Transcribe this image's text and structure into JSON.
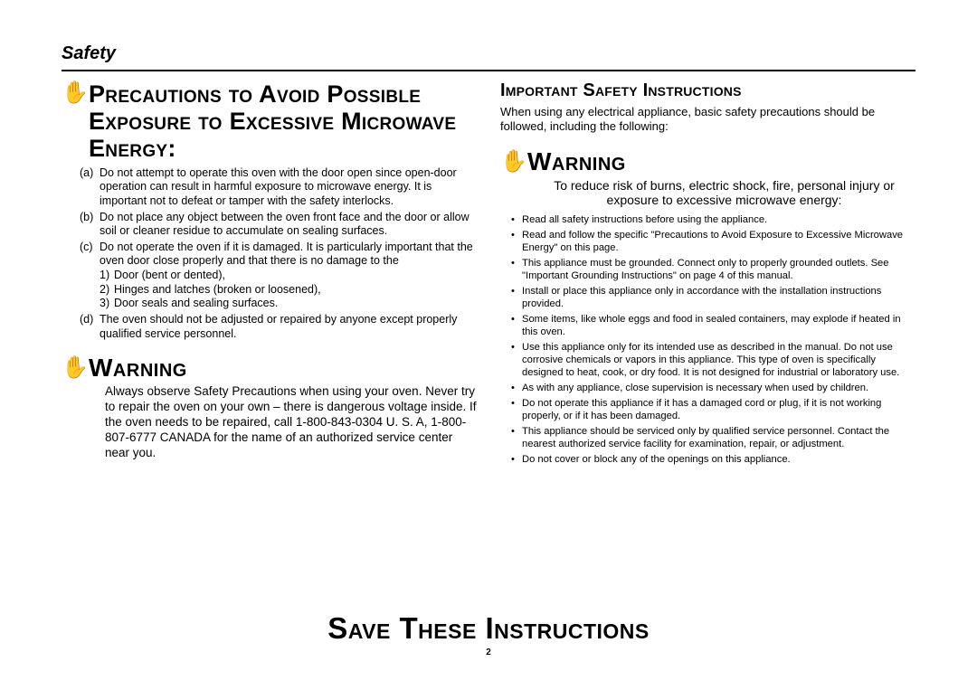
{
  "section_header": "Safety",
  "left": {
    "precautions_heading": "Precautions to Avoid Possible Exposure to Excessive Microwave Energy:",
    "items": [
      {
        "marker": "(a)",
        "text": "Do not attempt to operate this oven with the door open since open-door operation can result in harmful exposure to microwave energy. It is important not to defeat or tamper with the safety interlocks."
      },
      {
        "marker": "(b)",
        "text": "Do not place any object between the oven front face and the door or allow soil or cleaner residue to accumulate on sealing surfaces."
      },
      {
        "marker": "(c)",
        "text": "Do not operate the oven if it is damaged. It is particularly important that the oven door close properly and that there is no damage to the",
        "sub": [
          {
            "num": "1)",
            "text": "Door (bent or dented),"
          },
          {
            "num": "2)",
            "text": "Hinges and latches (broken or loosened),"
          },
          {
            "num": "3)",
            "text": "Door seals and sealing surfaces."
          }
        ]
      },
      {
        "marker": "(d)",
        "text": "The oven should not be adjusted or repaired by anyone except properly qualified service personnel."
      }
    ],
    "warning_label": "Warning",
    "warning_body": "Always observe Safety Precautions when using your oven. Never try to repair the oven on your own – there is dangerous voltage inside. If the oven needs to be repaired, call 1-800-843-0304 U. S. A, 1-800-807-6777 CANADA for the name of an authorized service center near you."
  },
  "right": {
    "important_heading": "Important Safety Instructions",
    "important_intro": "When using any electrical appliance, basic safety precautions should be followed, including the following:",
    "warning_label": "Warning",
    "warning_body": "To reduce risk of burns, electric shock, fire, personal injury or exposure to excessive microwave energy:",
    "bullets": [
      "Read all safety instructions before using the appliance.",
      "Read and follow the specific \"Precautions to Avoid Exposure to Excessive Microwave Energy\" on this page.",
      "This appliance must be grounded. Connect only to properly grounded outlets. See \"Important Grounding Instructions\" on page 4 of this manual.",
      "Install or place this appliance only in accordance with the installation instructions provided.",
      "Some items, like whole eggs and food in sealed containers, may explode if heated in this oven.",
      "Use this appliance only for its intended use as described in the manual. Do not use corrosive chemicals or vapors in this appliance. This type of oven is specifically designed to heat, cook, or dry food. It is not designed for industrial or laboratory use.",
      "As with any appliance, close supervision is necessary when used by children.",
      "Do not operate this appliance if it has a damaged cord or plug, if it is not working properly, or if it has been damaged.",
      "This appliance should be serviced only by qualified service personnel. Contact the nearest authorized service facility for examination, repair, or adjustment.",
      "Do not cover or block any of the openings on this appliance."
    ]
  },
  "footer": {
    "save": "Save These Instructions",
    "page": "2"
  },
  "icons": {
    "hand": "✋"
  }
}
